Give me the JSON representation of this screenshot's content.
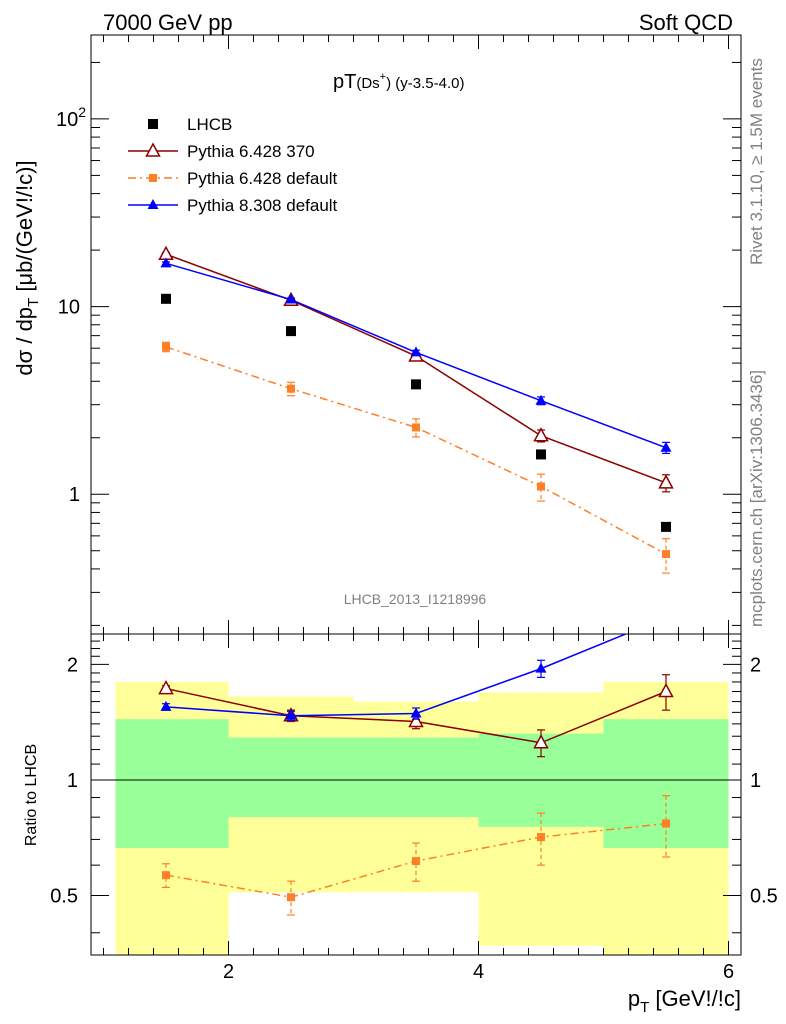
{
  "header": {
    "left": "7000 GeV pp",
    "right": "Soft QCD"
  },
  "side_labels": {
    "rivet": "Rivet 3.1.10, ≥ 1.5M events",
    "source": "mcplots.cern.ch [arXiv:1306.3436]"
  },
  "chart_data": [
    {
      "type": "line",
      "title": "pT(Ds+) (y-3.5-4.0)",
      "title_main": "pT",
      "title_paren": "(Ds",
      "title_sup": "+",
      "title_tail": ") (y-3.5-4.0)",
      "watermark": "LHCB_2013_I1218996",
      "ylabel": "dσ / dp_T [μb/(GeV!/!c)]",
      "ylabel_main": "dσ / dp",
      "ylabel_sub": "T",
      "ylabel_tail": " [μb/(GeV!/!c)]",
      "yscale": "log",
      "ylim": [
        0.18,
        280
      ],
      "xlim": [
        0.9,
        6.1
      ],
      "y_ticklabels": [
        {
          "value": 100,
          "base": "10",
          "exp": "2"
        },
        {
          "value": 10,
          "base": "10",
          "exp": ""
        },
        {
          "value": 1,
          "base": "1",
          "exp": ""
        }
      ],
      "legend_position": "top-left",
      "series": [
        {
          "name": "LHCB",
          "color": "#000000",
          "marker": "square",
          "x": [
            1.5,
            2.5,
            3.5,
            4.5,
            5.5
          ],
          "y": [
            11.0,
            7.4,
            3.85,
            1.63,
            0.67
          ],
          "yerr": [
            0.4,
            0.3,
            0.15,
            0.07,
            0.03
          ]
        },
        {
          "name": "Pythia 6.428 370",
          "color": "#8b0000",
          "marker": "open-triangle",
          "line": "solid",
          "x": [
            1.5,
            2.5,
            3.5,
            4.5,
            5.5
          ],
          "y": [
            19.0,
            10.8,
            5.45,
            2.05,
            1.15
          ],
          "yerr": [
            0.4,
            0.25,
            0.2,
            0.15,
            0.12
          ]
        },
        {
          "name": "Pythia 6.428 default",
          "color": "#ff7f27",
          "marker": "square",
          "line": "dashdot",
          "x": [
            1.5,
            2.5,
            3.5,
            4.5,
            5.5
          ],
          "y": [
            6.1,
            3.65,
            2.27,
            1.1,
            0.48
          ],
          "yerr": [
            0.35,
            0.3,
            0.25,
            0.18,
            0.1
          ]
        },
        {
          "name": "Pythia 8.308 default",
          "color": "#0000ff",
          "marker": "triangle",
          "line": "solid",
          "x": [
            1.5,
            2.5,
            3.5,
            4.5,
            5.5
          ],
          "y": [
            17.0,
            10.9,
            5.7,
            3.15,
            1.77
          ],
          "yerr": [
            0.3,
            0.2,
            0.15,
            0.15,
            0.12
          ]
        }
      ]
    },
    {
      "type": "line",
      "ylabel": "Ratio to LHCB",
      "xlabel": "p_T [GeV!/!c]",
      "xlabel_main": "p",
      "xlabel_sub": "T",
      "xlabel_tail": " [GeV!/!c]",
      "yscale": "log",
      "ylim": [
        0.35,
        2.4
      ],
      "xlim": [
        0.9,
        6.1
      ],
      "x_ticklabels": [
        "2",
        "4",
        "6"
      ],
      "x_ticks": [
        2,
        4,
        6
      ],
      "y_ticklabels": [
        "2",
        "1",
        "0.5"
      ],
      "y_ticks": [
        2,
        1,
        0.5
      ],
      "bands": {
        "green_color": "#99ff99",
        "yellow_color": "#ffff99",
        "bins": [
          {
            "xlo": 1,
            "xhi": 2,
            "green": [
              0.665,
              1.44
            ],
            "yellow": [
              0.3,
              1.8
            ]
          },
          {
            "xlo": 2,
            "xhi": 3,
            "green": [
              0.8,
              1.29
            ],
            "yellow": [
              0.51,
              1.65
            ]
          },
          {
            "xlo": 3,
            "xhi": 4,
            "green": [
              0.8,
              1.29
            ],
            "yellow": [
              0.51,
              1.6
            ]
          },
          {
            "xlo": 4,
            "xhi": 5,
            "green": [
              0.755,
              1.32
            ],
            "yellow": [
              0.37,
              1.69
            ]
          },
          {
            "xlo": 5,
            "xhi": 6,
            "green": [
              0.665,
              1.44
            ],
            "yellow": [
              0.3,
              1.8
            ]
          }
        ]
      },
      "series": [
        {
          "name": "Pythia 6.428 370",
          "color": "#8b0000",
          "marker": "open-triangle",
          "line": "solid",
          "x": [
            1.5,
            2.5,
            3.5,
            4.5,
            5.5
          ],
          "y": [
            1.73,
            1.47,
            1.42,
            1.25,
            1.7
          ],
          "yerr": [
            0.03,
            0.05,
            0.06,
            0.1,
            0.18
          ]
        },
        {
          "name": "Pythia 6.428 default",
          "color": "#ff7f27",
          "marker": "square",
          "line": "dashdot",
          "x": [
            1.5,
            2.5,
            3.5,
            4.5,
            5.5
          ],
          "y": [
            0.565,
            0.495,
            0.615,
            0.71,
            0.77
          ],
          "yerr": [
            0.04,
            0.05,
            0.07,
            0.11,
            0.14
          ]
        },
        {
          "name": "Pythia 8.308 default",
          "color": "#0000ff",
          "marker": "triangle",
          "line": "solid",
          "x": [
            1.5,
            2.5,
            3.5,
            4.5,
            5.5
          ],
          "y": [
            1.55,
            1.47,
            1.49,
            1.95,
            2.65
          ],
          "yerr": [
            0.03,
            0.04,
            0.05,
            0.1,
            0.15
          ]
        }
      ]
    }
  ]
}
